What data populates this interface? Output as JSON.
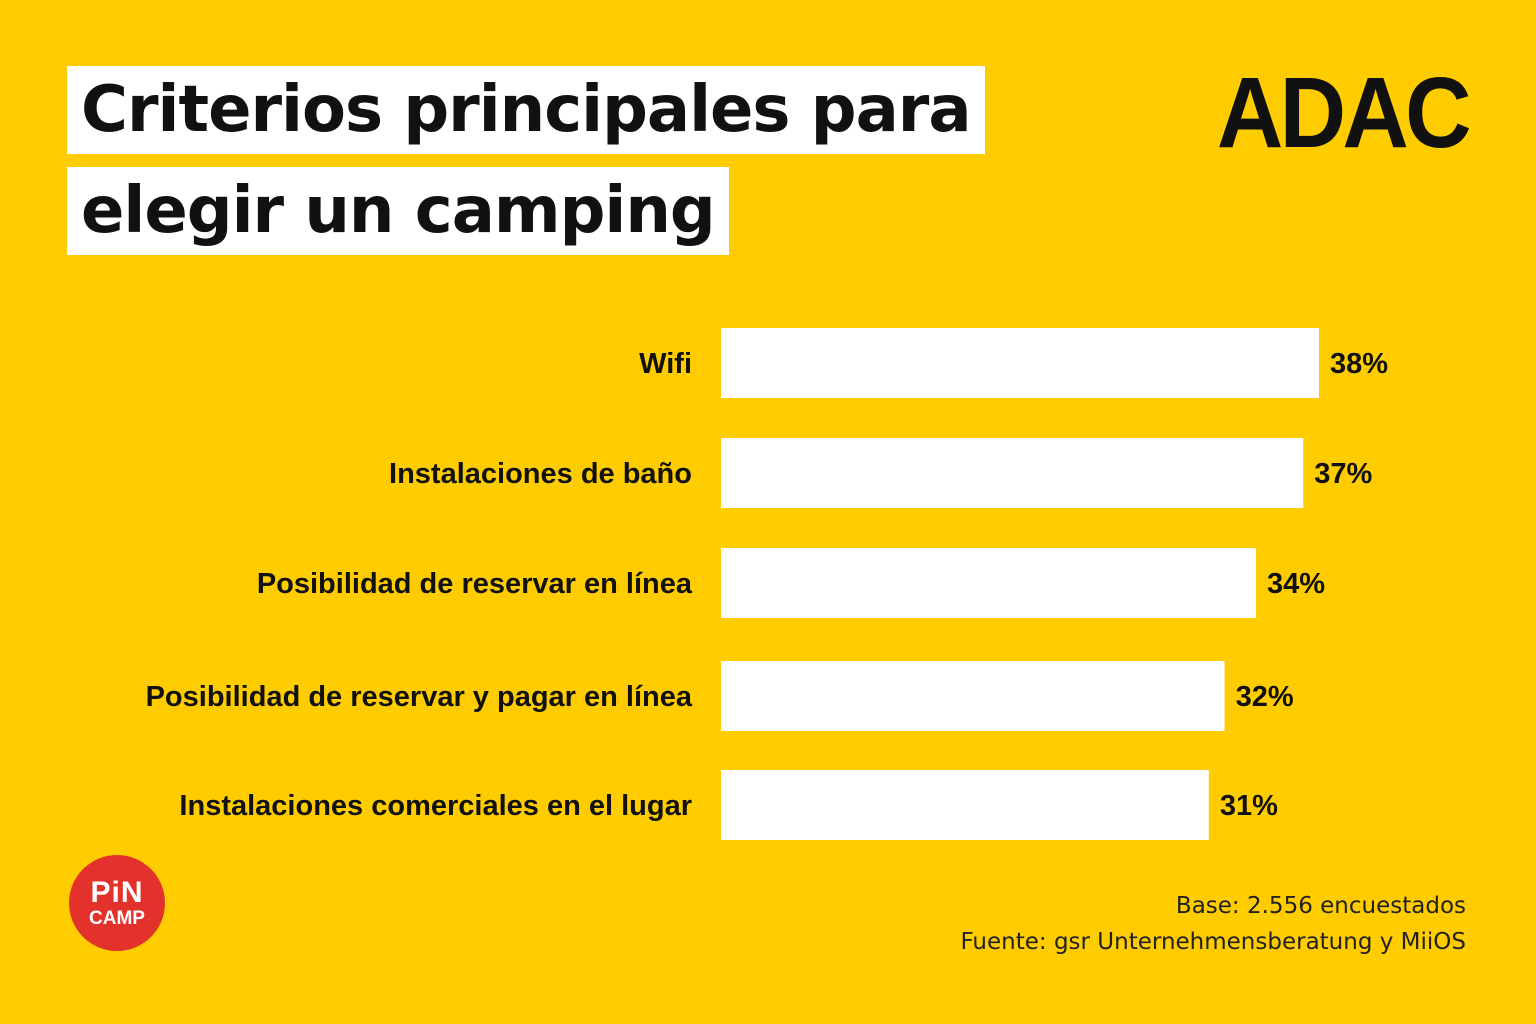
{
  "title": {
    "line1": "Criterios principales para",
    "line2": "elegir un camping"
  },
  "brand": "ADAC",
  "partner": {
    "line1": "PiN",
    "line2": "CAMP"
  },
  "footnotes": {
    "base": "Base: 2.556 encuestados",
    "source": "Fuente: gsr Unternehmensberatung y MiiOS"
  },
  "colors": {
    "background": "#FFCC00",
    "bar": "#FFFFFF",
    "text": "#111111",
    "partner": "#E3322B"
  },
  "chart_data": {
    "type": "bar",
    "orientation": "horizontal",
    "categories": [
      "Wifi",
      "Instalaciones de baño",
      "Posibilidad de reservar en línea",
      "Posibilidad de reservar y pagar en línea",
      "Instalaciones comerciales en el lugar"
    ],
    "values": [
      38,
      37,
      34,
      32,
      31
    ],
    "value_labels": [
      "38%",
      "37%",
      "34%",
      "32%",
      "31%"
    ],
    "unit": "%",
    "xlim": [
      0,
      38
    ],
    "grid": false,
    "legend": "none"
  }
}
